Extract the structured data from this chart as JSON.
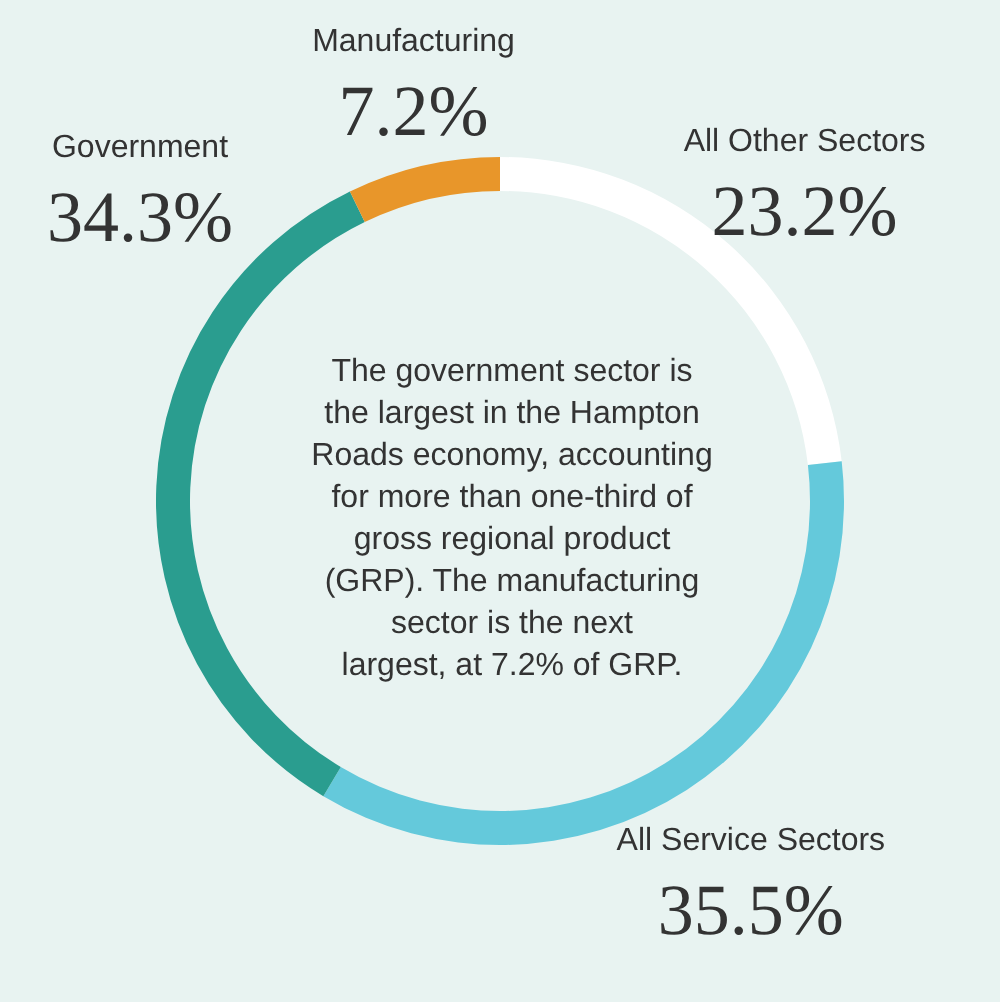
{
  "chart_data": {
    "type": "donut",
    "categories": [
      "All Other Sectors",
      "All Service Sectors",
      "Government",
      "Manufacturing"
    ],
    "values": [
      23.2,
      35.5,
      34.3,
      7.2
    ],
    "colors": [
      "#ffffff",
      "#64c9db",
      "#2a9d8f",
      "#e8962a"
    ],
    "value_labels": [
      "23.2%",
      "35.5%",
      "34.3%",
      "7.2%"
    ],
    "annotations": [
      "The government sector is the largest in the Hampton Roads economy, accounting for more than one-third of gross regional product (GRP). The manufacturing sector is the next largest, at 7.2% of GRP."
    ]
  }
}
